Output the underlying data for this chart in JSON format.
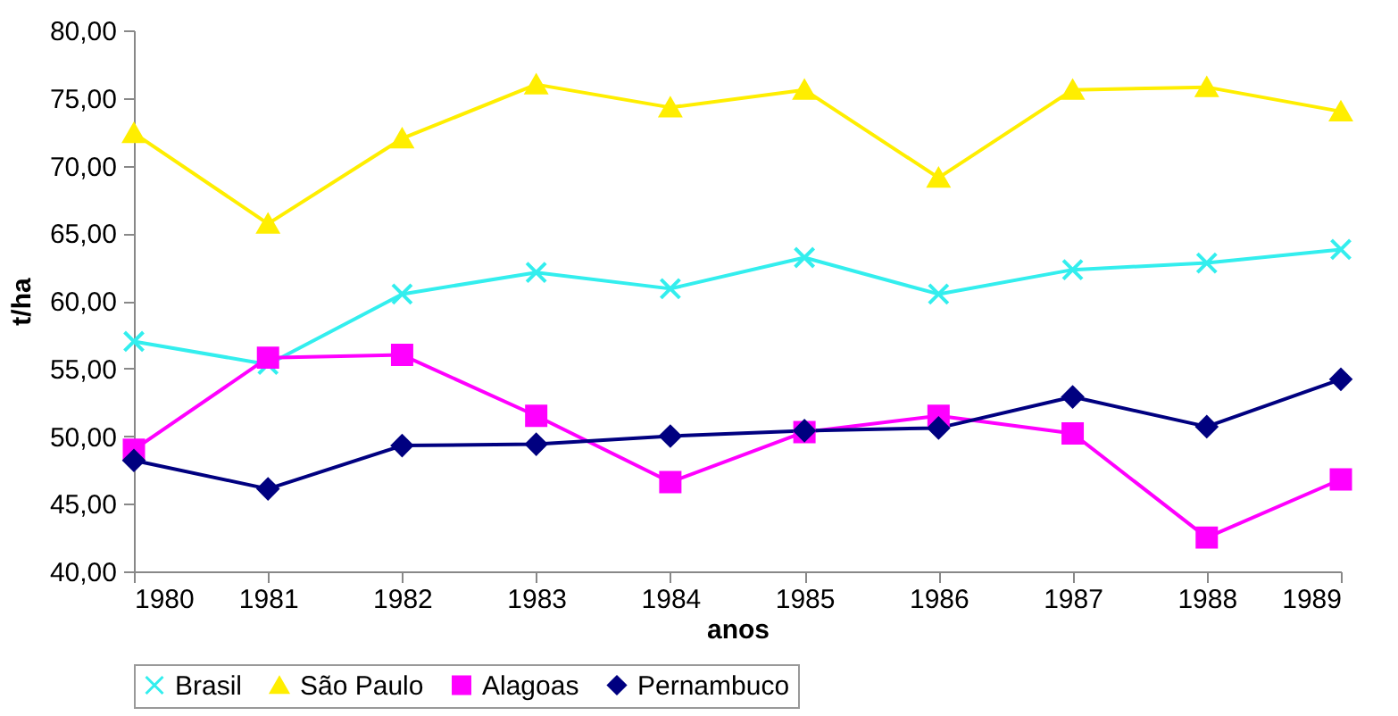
{
  "chart_data": {
    "type": "line",
    "xlabel": "anos",
    "ylabel": "t/ha",
    "categories": [
      "1980",
      "1981",
      "1982",
      "1983",
      "1984",
      "1985",
      "1986",
      "1987",
      "1988",
      "1989"
    ],
    "series": [
      {
        "name": "Brasil",
        "color": "#33eeee",
        "marker": "cross",
        "values": [
          57.0,
          55.3,
          60.5,
          62.1,
          60.9,
          63.2,
          60.5,
          62.3,
          62.8,
          63.8
        ]
      },
      {
        "name": "São Paulo",
        "color": "#ffee00",
        "marker": "triangle",
        "values": [
          72.4,
          65.7,
          72.0,
          76.0,
          74.3,
          75.6,
          69.1,
          75.6,
          75.8,
          74.0
        ]
      },
      {
        "name": "Alagoas",
        "color": "#ff00ff",
        "marker": "square",
        "values": [
          49.0,
          55.8,
          56.0,
          51.5,
          46.6,
          50.3,
          51.5,
          50.2,
          42.5,
          46.8
        ]
      },
      {
        "name": "Pernambuco",
        "color": "#000080",
        "marker": "diamond",
        "values": [
          48.2,
          46.1,
          49.3,
          49.4,
          50.0,
          50.4,
          50.6,
          52.9,
          50.7,
          54.2
        ]
      }
    ],
    "ylim": [
      40,
      80
    ],
    "yticks": [
      {
        "value": 40,
        "label": "40,00"
      },
      {
        "value": 45,
        "label": "45,00"
      },
      {
        "value": 50,
        "label": "50,00"
      },
      {
        "value": 55,
        "label": "55,00"
      },
      {
        "value": 60,
        "label": "60,00"
      },
      {
        "value": 65,
        "label": "65,00"
      },
      {
        "value": 70,
        "label": "70,00"
      },
      {
        "value": 75,
        "label": "75,00"
      },
      {
        "value": 80,
        "label": "80,00"
      }
    ],
    "grid": false,
    "legend": "bottom"
  }
}
